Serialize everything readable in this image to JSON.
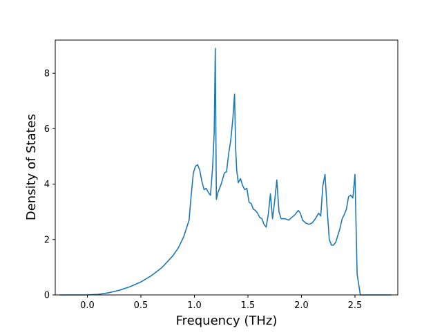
{
  "chart_data": {
    "type": "line",
    "xlabel": "Frequency (THz)",
    "ylabel": "Density of States",
    "xlim": [
      -0.3,
      2.9
    ],
    "ylim": [
      0,
      9.2
    ],
    "xticks": [
      0.0,
      0.5,
      1.0,
      1.5,
      2.0,
      2.5
    ],
    "xtick_labels": [
      "0.0",
      "0.5",
      "1.0",
      "1.5",
      "2.0",
      "2.5"
    ],
    "yticks": [
      0,
      2,
      4,
      6,
      8
    ],
    "ytick_labels": [
      "0",
      "2",
      "4",
      "6",
      "8"
    ],
    "grid": false,
    "line_color": "#1f77b4",
    "series": [
      {
        "x": [
          -0.26,
          0.0,
          0.1,
          0.2,
          0.3,
          0.4,
          0.5,
          0.6,
          0.7,
          0.8,
          0.85,
          0.9,
          0.95,
          0.97,
          0.99,
          1.01,
          1.03,
          1.05,
          1.07,
          1.09,
          1.11,
          1.13,
          1.15,
          1.17,
          1.185,
          1.195,
          1.205,
          1.22,
          1.25,
          1.28,
          1.3,
          1.32,
          1.34,
          1.36,
          1.375,
          1.385,
          1.395,
          1.41,
          1.43,
          1.45,
          1.47,
          1.49,
          1.51,
          1.53,
          1.55,
          1.57,
          1.59,
          1.61,
          1.63,
          1.65,
          1.67,
          1.69,
          1.71,
          1.73,
          1.75,
          1.77,
          1.79,
          1.81,
          1.83,
          1.85,
          1.88,
          1.91,
          1.94,
          1.97,
          1.99,
          2.01,
          2.04,
          2.07,
          2.1,
          2.13,
          2.16,
          2.18,
          2.2,
          2.22,
          2.24,
          2.26,
          2.28,
          2.3,
          2.32,
          2.34,
          2.36,
          2.38,
          2.4,
          2.42,
          2.44,
          2.46,
          2.48,
          2.5,
          2.52,
          2.53,
          2.54,
          2.55,
          2.58,
          2.6,
          2.84
        ],
        "y": [
          0.0,
          0.0,
          0.02,
          0.08,
          0.17,
          0.3,
          0.47,
          0.7,
          1.0,
          1.42,
          1.7,
          2.1,
          2.7,
          3.6,
          4.4,
          4.65,
          4.7,
          4.5,
          4.1,
          3.8,
          3.85,
          3.7,
          3.6,
          4.6,
          5.9,
          8.9,
          3.45,
          3.7,
          4.0,
          4.4,
          4.45,
          5.1,
          5.6,
          6.4,
          7.25,
          5.3,
          4.5,
          4.05,
          4.2,
          3.95,
          3.8,
          3.85,
          3.35,
          3.3,
          3.1,
          3.05,
          2.95,
          2.8,
          2.75,
          2.55,
          2.45,
          2.9,
          3.65,
          2.75,
          3.4,
          4.15,
          3.0,
          2.75,
          2.75,
          2.75,
          2.7,
          2.8,
          2.9,
          3.05,
          2.95,
          2.7,
          2.6,
          2.55,
          2.6,
          2.75,
          2.95,
          2.85,
          3.95,
          4.35,
          3.1,
          2.0,
          1.8,
          1.8,
          1.9,
          2.15,
          2.4,
          2.75,
          2.9,
          3.1,
          3.55,
          3.6,
          3.5,
          4.35,
          0.75,
          0.5,
          0.25,
          0.0,
          0.0,
          0.0,
          0.0
        ]
      }
    ]
  }
}
